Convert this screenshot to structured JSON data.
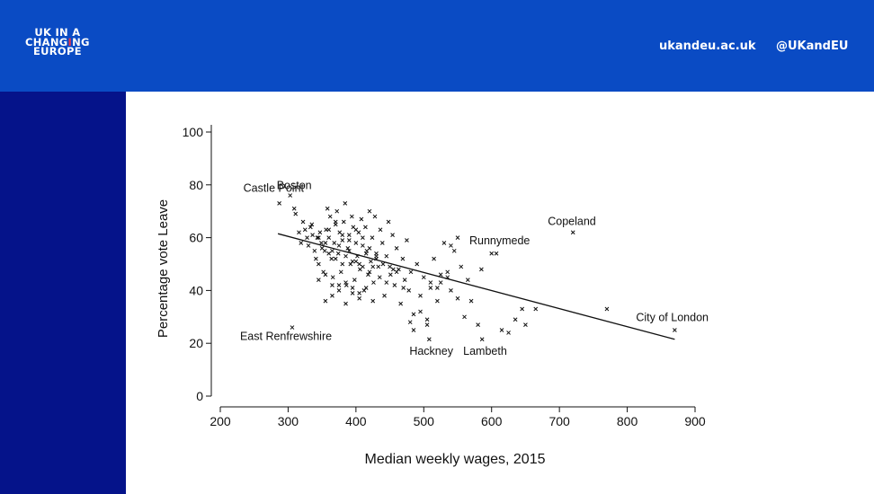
{
  "header": {
    "logo_lines": [
      "UK IN A",
      "CHANGING",
      "EUROPE"
    ],
    "site_link": "ukandeu.ac.uk",
    "handle_link": "@UKandEU"
  },
  "colors": {
    "header": "#0a4bc4",
    "sidebar": "#05138a",
    "logo_accent": "#e8344b"
  },
  "chart_data": {
    "type": "scatter",
    "xlabel": "Median weekly wages, 2015",
    "ylabel": "Percentage vote Leave",
    "xlim": [
      200,
      900
    ],
    "ylim": [
      0,
      100
    ],
    "xticks": [
      200,
      300,
      400,
      500,
      600,
      700,
      800,
      900
    ],
    "yticks": [
      0,
      20,
      40,
      60,
      80,
      100
    ],
    "grid": false,
    "legend": "none",
    "marker": "x",
    "fit_line": {
      "x": [
        285,
        870
      ],
      "y": [
        61.5,
        21.5
      ]
    },
    "labeled_points": [
      {
        "label": "Boston",
        "x": 303,
        "y": 76
      },
      {
        "label": "Castle Point",
        "x": 287,
        "y": 73
      },
      {
        "label": "Copeland",
        "x": 720,
        "y": 62
      },
      {
        "label": "Runnymede",
        "x": 607,
        "y": 54
      },
      {
        "label": "City of London",
        "x": 870,
        "y": 25
      },
      {
        "label": "East Renfrewshire",
        "x": 306,
        "y": 26
      },
      {
        "label": "Hackney",
        "x": 508,
        "y": 21.5
      },
      {
        "label": "Lambeth",
        "x": 586,
        "y": 21.5
      }
    ],
    "points": {
      "x": [
        303,
        287,
        720,
        607,
        870,
        306,
        508,
        586,
        309,
        311,
        316,
        319,
        322,
        325,
        328,
        330,
        333,
        336,
        339,
        341,
        343,
        345,
        347,
        349,
        352,
        354,
        356,
        358,
        360,
        362,
        364,
        366,
        368,
        370,
        372,
        374,
        376,
        378,
        380,
        382,
        384,
        386,
        388,
        390,
        392,
        394,
        396,
        398,
        400,
        402,
        404,
        406,
        408,
        410,
        412,
        414,
        416,
        418,
        420,
        422,
        424,
        426,
        428,
        430,
        433,
        436,
        439,
        442,
        445,
        448,
        451,
        454,
        457,
        460,
        463,
        466,
        469,
        472,
        475,
        478,
        481,
        485,
        490,
        495,
        500,
        505,
        510,
        515,
        520,
        525,
        530,
        535,
        540,
        545,
        550,
        555,
        560,
        565,
        570,
        580,
        585,
        600,
        615,
        625,
        635,
        645,
        650,
        665,
        770,
        355,
        365,
        375,
        385,
        395,
        405,
        415,
        425,
        335,
        345,
        355,
        365,
        375,
        385,
        395,
        405,
        415,
        425,
        435,
        445,
        455,
        360,
        370,
        380,
        390,
        400,
        410,
        420,
        430,
        440,
        450,
        460,
        470,
        350,
        360,
        370,
        380,
        390,
        400,
        410,
        420,
        430,
        345,
        355,
        365,
        375,
        385,
        395,
        405,
        480,
        495,
        510,
        525,
        540,
        485,
        505,
        520,
        535,
        550
      ],
      "y": [
        76,
        73,
        62,
        54,
        25,
        26,
        21.5,
        21.5,
        71,
        69,
        62,
        58,
        66,
        63,
        60,
        57,
        64,
        61,
        55,
        52,
        60,
        50,
        62,
        58,
        47,
        55,
        63,
        71,
        60,
        68,
        52,
        45,
        58,
        65,
        70,
        54,
        62,
        47,
        59,
        66,
        73,
        42,
        56,
        61,
        50,
        68,
        64,
        44,
        58,
        53,
        62,
        48,
        67,
        57,
        40,
        64,
        55,
        46,
        70,
        51,
        60,
        43,
        68,
        54,
        49,
        63,
        58,
        38,
        53,
        66,
        46,
        61,
        42,
        56,
        48,
        35,
        52,
        44,
        59,
        40,
        47,
        31,
        50,
        38,
        45,
        27,
        41,
        52,
        36,
        43,
        58,
        47,
        40,
        55,
        37,
        49,
        30,
        44,
        36,
        27,
        48,
        54,
        25,
        24,
        29,
        33,
        27,
        33,
        33,
        36,
        38,
        42,
        35,
        39,
        37,
        41,
        36,
        65,
        60,
        58,
        55,
        57,
        53,
        51,
        50,
        54,
        49,
        45,
        43,
        48,
        63,
        66,
        61,
        59,
        63,
        60,
        56,
        52,
        50,
        49,
        47,
        41,
        56,
        54,
        52,
        50,
        55,
        51,
        49,
        47,
        53,
        44,
        46,
        42,
        40,
        43,
        41,
        39,
        28,
        32,
        43,
        46,
        57,
        25,
        29,
        41,
        45,
        60
      ]
    }
  }
}
